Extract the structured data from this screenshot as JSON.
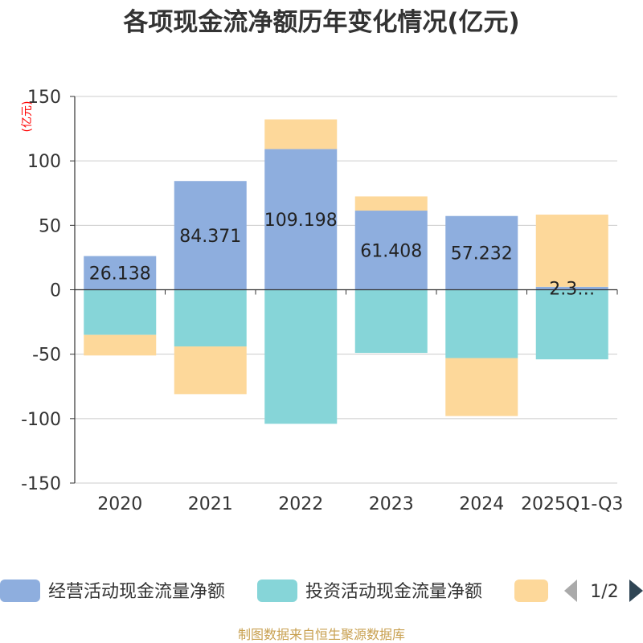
{
  "chart_data": {
    "type": "bar",
    "stacked": true,
    "title": "各项现金流净额历年变化情况(亿元)",
    "ylabel": "(亿元)",
    "xlabel": "",
    "ylim": [
      -150,
      150
    ],
    "yticks": [
      -150,
      -100,
      -50,
      0,
      50,
      100,
      150
    ],
    "grid": true,
    "categories": [
      "2020",
      "2021",
      "2022",
      "2023",
      "2024",
      "2025Q1-Q3"
    ],
    "series": [
      {
        "name": "经营活动现金流量净额",
        "color": "#8eaede",
        "values": [
          26.138,
          84.371,
          109.198,
          61.408,
          57.232,
          2.3
        ],
        "labels": [
          "26.138",
          "84.371",
          "109.198",
          "61.408",
          "57.232",
          "2.3…"
        ]
      },
      {
        "name": "投资活动现金流量净额",
        "color": "#86d5d8",
        "values": [
          -35,
          -44,
          -104,
          -49,
          -53,
          -54
        ]
      },
      {
        "name": "",
        "color": "#fdd89a",
        "values": [
          -16,
          -37,
          23,
          11,
          -45,
          56
        ]
      }
    ],
    "legend_position": "bottom"
  },
  "legend": {
    "page": "1/2"
  },
  "source": "制图数据来自恒生聚源数据库"
}
